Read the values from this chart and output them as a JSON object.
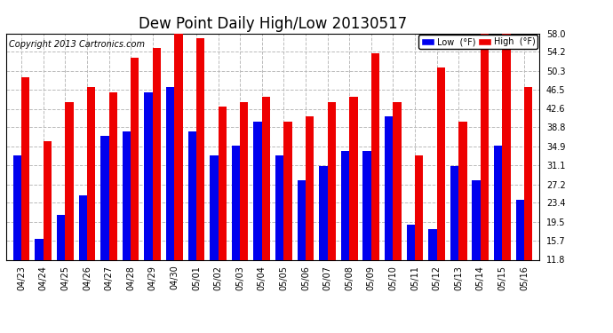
{
  "title": "Dew Point Daily High/Low 20130517",
  "copyright": "Copyright 2013 Cartronics.com",
  "dates": [
    "04/23",
    "04/24",
    "04/25",
    "04/26",
    "04/27",
    "04/28",
    "04/29",
    "04/30",
    "05/01",
    "05/02",
    "05/03",
    "05/04",
    "05/05",
    "05/06",
    "05/07",
    "05/08",
    "05/09",
    "05/10",
    "05/11",
    "05/12",
    "05/13",
    "05/14",
    "05/15",
    "05/16"
  ],
  "low": [
    33,
    16,
    21,
    25,
    37,
    38,
    46,
    47,
    38,
    33,
    35,
    40,
    33,
    28,
    31,
    34,
    34,
    41,
    19,
    18,
    31,
    28,
    35,
    24
  ],
  "high": [
    49,
    36,
    44,
    47,
    46,
    53,
    55,
    58,
    57,
    43,
    44,
    45,
    40,
    41,
    44,
    45,
    54,
    44,
    33,
    51,
    40,
    58,
    58,
    47
  ],
  "ylim": [
    11.8,
    58.0
  ],
  "yticks": [
    11.8,
    15.7,
    19.5,
    23.4,
    27.2,
    31.1,
    34.9,
    38.8,
    42.6,
    46.5,
    50.3,
    54.2,
    58.0
  ],
  "low_color": "#0000ee",
  "high_color": "#ee0000",
  "bg_color": "#ffffff",
  "grid_color": "#bbbbbb",
  "bar_width": 0.38,
  "title_fontsize": 12,
  "tick_fontsize": 7,
  "copyright_fontsize": 7
}
